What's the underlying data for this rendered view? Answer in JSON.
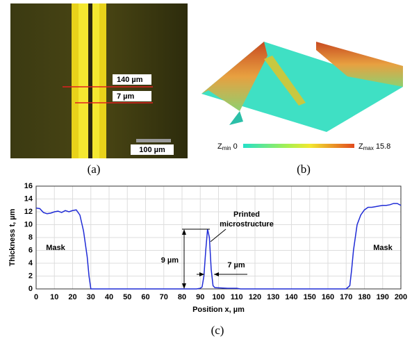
{
  "panel_a": {
    "label": "(a)",
    "measure_wide": "140 µm",
    "measure_narrow": "7 µm",
    "scale_bar": "100 µm"
  },
  "panel_b": {
    "label": "(b)",
    "z": "Z",
    "min_sub": "min",
    "min_value": "0",
    "max_sub": "max",
    "max_value": "15.8"
  },
  "panel_c": {
    "label": "(c)"
  },
  "chart_data": {
    "type": "line",
    "xlabel": "Position x, µm",
    "ylabel": "Thickness t, µm",
    "annotations": {
      "mask_left": "Mask",
      "mask_right": "Mask",
      "printed_1": "Printed",
      "printed_2": "microstructure",
      "height": "9 µm",
      "width": "7 µm"
    },
    "xlim": [
      0,
      200
    ],
    "ylim": [
      0,
      16
    ],
    "xticks": [
      0,
      10,
      20,
      30,
      40,
      50,
      60,
      70,
      80,
      90,
      100,
      110,
      120,
      130,
      140,
      150,
      160,
      170,
      180,
      190,
      200
    ],
    "yticks": [
      0,
      2,
      4,
      6,
      8,
      10,
      12,
      14,
      16
    ],
    "grid": true,
    "series": [
      {
        "color": "#1f2bd6",
        "x": [
          0,
          2,
          4,
          6,
          8,
          10,
          12,
          14,
          16,
          18,
          20,
          22,
          24,
          26,
          28,
          29,
          30,
          40,
          60,
          80,
          88,
          90,
          91,
          92,
          93,
          94,
          95,
          96,
          97,
          98,
          105,
          110,
          112,
          140,
          170,
          172,
          173,
          174,
          175,
          176,
          178,
          180,
          182,
          184,
          186,
          188,
          190,
          192,
          194,
          196,
          198,
          200
        ],
        "values": [
          12.6,
          12.5,
          11.9,
          11.7,
          11.8,
          12.0,
          12.1,
          11.9,
          12.2,
          12.0,
          12.2,
          12.3,
          11.5,
          9,
          5,
          2,
          0,
          0,
          0,
          0,
          0,
          0.1,
          0.3,
          2,
          6,
          9.3,
          8,
          3,
          0.5,
          0.2,
          0.1,
          0.1,
          0,
          0,
          0,
          0.5,
          3,
          6,
          8,
          10,
          11.5,
          12.3,
          12.7,
          12.7,
          12.8,
          12.9,
          13.0,
          13.0,
          13.1,
          13.3,
          13.3,
          13.0
        ]
      }
    ]
  }
}
